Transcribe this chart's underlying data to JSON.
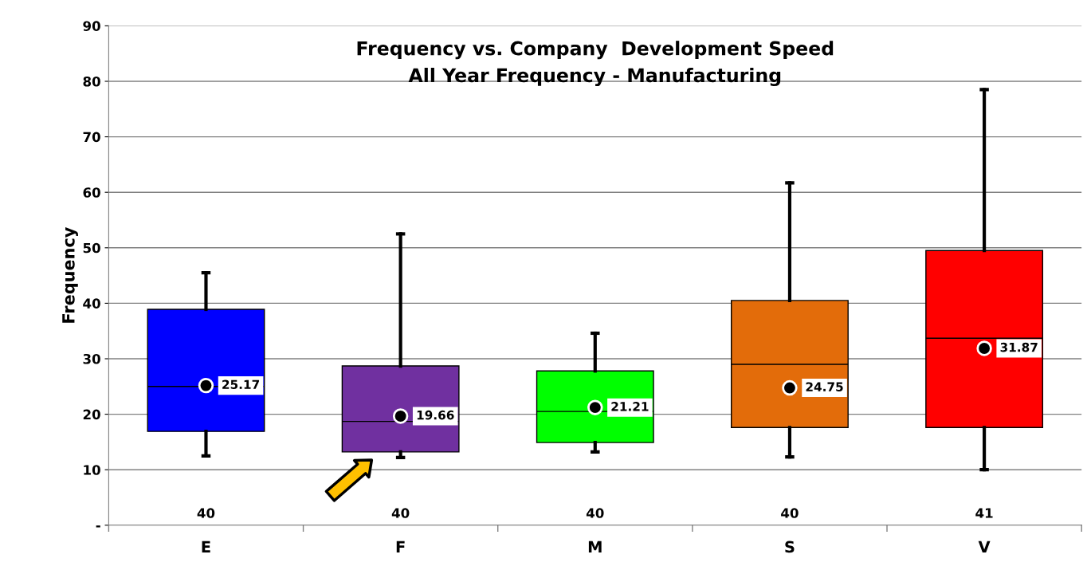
{
  "chart_data": {
    "type": "box",
    "title": "Frequency vs. Company  Development Speed\nAll Year Frequency - Manufacturing",
    "ylabel": "Frequency",
    "categories": [
      "E",
      "F",
      "M",
      "S",
      "V"
    ],
    "colors": [
      "#0000ff",
      "#7030a0",
      "#00ff00",
      "#e36c0a",
      "#ff0000"
    ],
    "boxes": [
      {
        "low": 12.5,
        "q1": 16.9,
        "median": 25.0,
        "q3": 38.9,
        "high": 45.5,
        "mean": 25.17
      },
      {
        "low": 12.2,
        "q1": 13.2,
        "median": 18.7,
        "q3": 28.7,
        "high": 52.5,
        "mean": 19.66
      },
      {
        "low": 13.2,
        "q1": 14.9,
        "median": 20.5,
        "q3": 27.8,
        "high": 34.6,
        "mean": 21.21
      },
      {
        "low": 12.3,
        "q1": 17.6,
        "median": 29.0,
        "q3": 40.5,
        "high": 61.7,
        "mean": 24.75
      },
      {
        "low": 10.0,
        "q1": 17.6,
        "median": 33.7,
        "q3": 49.5,
        "high": 78.5,
        "mean": 31.87
      }
    ],
    "value_labels": [
      "25.17",
      "19.66",
      "21.21",
      "24.75",
      "31.87"
    ],
    "ylim": [
      0,
      90
    ],
    "yticks": [
      {
        "value": 0,
        "label": "-"
      },
      10,
      20,
      30,
      40,
      50,
      60,
      70,
      80,
      90
    ],
    "grid": "y",
    "annotations": [
      "40",
      "40",
      "40",
      "40",
      "41"
    ]
  }
}
